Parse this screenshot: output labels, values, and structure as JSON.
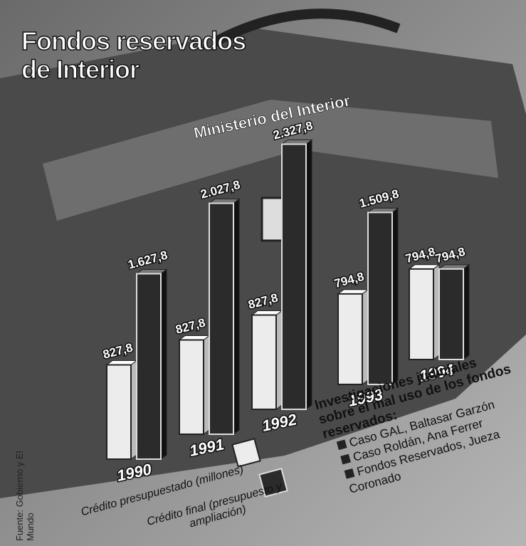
{
  "chart_data": {
    "type": "bar",
    "title": "Fondos reservados de Interior",
    "subtitle": "Ministerio del Interior",
    "source": "Fuente: Gobierno y El Mundo",
    "categories": [
      "1990",
      "1991",
      "1992",
      "1993",
      "1994"
    ],
    "series": [
      {
        "name": "Crédito presupuestado (millones)",
        "color": "#ececec",
        "values": [
          827.8,
          827.8,
          827.8,
          794.8,
          794.8
        ],
        "value_labels": [
          "827,8",
          "827,8",
          "827,8",
          "794,8",
          "794,8"
        ]
      },
      {
        "name": "Crédito final (presupuesto y ampliación)",
        "color": "#2b2b2b",
        "values": [
          1627.8,
          2027.8,
          2327.8,
          1509.8,
          794.8
        ],
        "value_labels": [
          "1.627,8",
          "2.027,8",
          "2.327,8",
          "1.509,8",
          "794,8"
        ]
      }
    ],
    "annotation": {
      "title": "Investigaciones judiciales sobre el mal uso de los fondos reservados:",
      "items": [
        "Caso GAL, Baltasar Garzón",
        "Caso Roldán, Ana Ferrer",
        "Fondos Reservados, Jueza Coronado"
      ]
    }
  }
}
